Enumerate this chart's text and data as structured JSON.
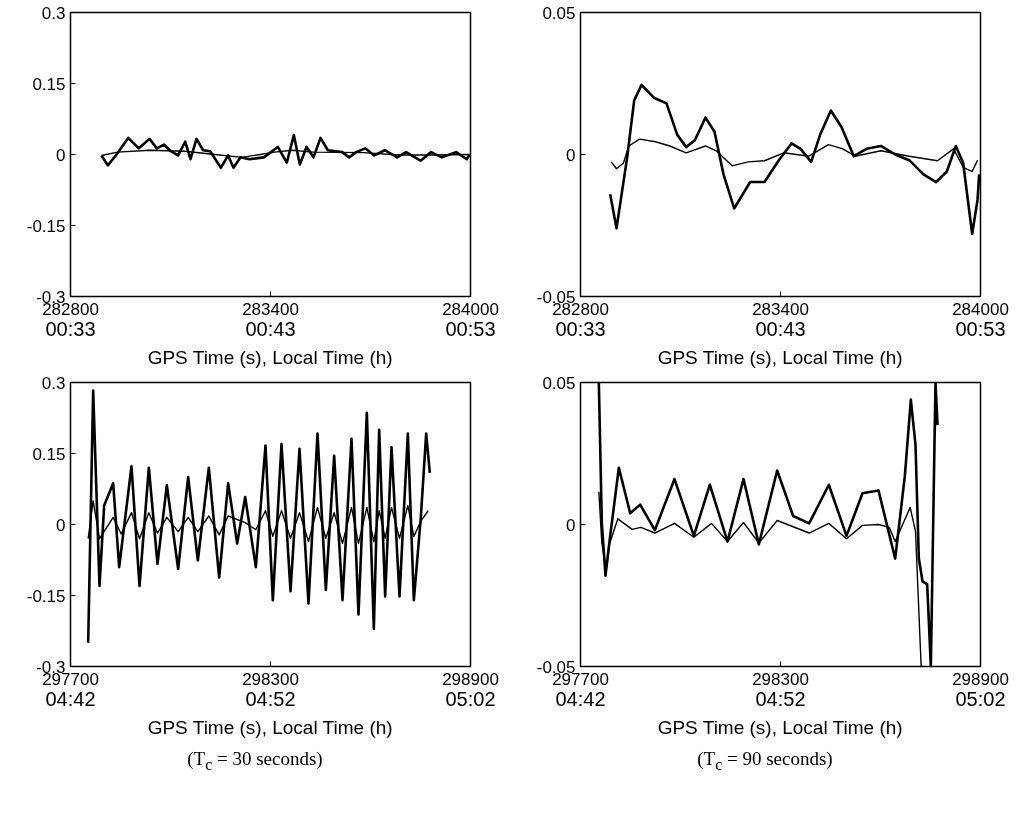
{
  "chart_data": [
    {
      "type": "line",
      "xlabel": "GPS Time (s), Local Time (h)",
      "xlim": [
        282800,
        284000
      ],
      "ylim": [
        -0.3,
        0.3
      ],
      "xticks": [
        282800,
        283400,
        284000
      ],
      "x2lim": [
        0.55,
        0.8833333
      ],
      "x2ticks": [
        {
          "value": 0.55,
          "label": "00:33"
        },
        {
          "value": 0.7166667,
          "label": "00:43"
        },
        {
          "value": 0.8833333,
          "label": "00:53"
        }
      ],
      "yticks": [
        -0.3,
        -0.15,
        0,
        0.15,
        0.3
      ],
      "grid": false,
      "series": [
        {
          "color": "#000000",
          "x": [
            282893,
            282912,
            282936,
            282973,
            283005,
            283037,
            283059,
            283080,
            283101,
            283123,
            283144,
            283160,
            283178,
            283198,
            283219,
            283251,
            283273,
            283289,
            283310,
            283337,
            283380,
            283422,
            283449,
            283470,
            283488,
            283508,
            283529,
            283550,
            283572,
            283615,
            283636,
            283657,
            283684,
            283711,
            283743,
            283780,
            283807,
            283850,
            283882,
            283914,
            283957,
            283989,
            283997
          ],
          "values": [
            -0.002,
            -0.023,
            -0.002,
            0.035,
            0.013,
            0.033,
            0.013,
            0.021,
            0.007,
            -0.002,
            0.027,
            -0.01,
            0.033,
            0.009,
            0.007,
            -0.028,
            -0.002,
            -0.028,
            -0.006,
            -0.01,
            -0.006,
            0.016,
            -0.017,
            0.041,
            -0.021,
            0.016,
            -0.006,
            0.035,
            0.009,
            0.005,
            -0.006,
            0.005,
            0.013,
            -0.002,
            0.009,
            -0.006,
            0.005,
            -0.013,
            0.005,
            -0.006,
            0.005,
            -0.01,
            0
          ]
        },
        {
          "color": "#000000",
          "x": [
            282893,
            282941,
            283037,
            283144,
            283219,
            283315,
            283412,
            283465,
            283529,
            283678,
            283786,
            283893,
            283997
          ],
          "values": [
            -0.002,
            0.005,
            0.009,
            0.007,
            0.001,
            -0.006,
            0.005,
            0.009,
            0.005,
            0.004,
            -0.001,
            -0.001,
            0
          ]
        }
      ]
    },
    {
      "type": "line",
      "xlabel": "GPS Time (s), Local Time (h)",
      "xlim": [
        282800,
        284000
      ],
      "ylim": [
        -0.05,
        0.05
      ],
      "xticks": [
        282800,
        283400,
        284000
      ],
      "x2lim": [
        0.55,
        0.8833333
      ],
      "x2ticks": [
        {
          "value": 0.55,
          "label": "00:33"
        },
        {
          "value": 0.7166667,
          "label": "00:43"
        },
        {
          "value": 0.8833333,
          "label": "00:53"
        }
      ],
      "yticks": [
        -0.05,
        0,
        0.05
      ],
      "grid": false,
      "series": [
        {
          "color": "#000000",
          "x": [
            282889,
            282908,
            282940,
            282961,
            282983,
            283020,
            283058,
            283090,
            283117,
            283143,
            283175,
            283202,
            283229,
            283261,
            283309,
            283352,
            283395,
            283433,
            283460,
            283492,
            283519,
            283551,
            283583,
            283620,
            283658,
            283701,
            283744,
            283786,
            283829,
            283867,
            283899,
            283926,
            283948,
            283975,
            283991,
            283996
          ],
          "values": [
            -0.014,
            -0.026,
            -0.001,
            0.019,
            0.0245,
            0.02,
            0.018,
            0.007,
            0.0026,
            0.005,
            0.013,
            0.008,
            -0.007,
            -0.019,
            -0.0097,
            -0.0097,
            -0.002,
            0.0039,
            0.002,
            -0.0026,
            0.007,
            0.0155,
            0.0097,
            -0.0006,
            0.002,
            0.003,
            0,
            -0.002,
            -0.007,
            -0.0097,
            -0.006,
            0.003,
            -0.003,
            -0.028,
            -0.016,
            -0.007
          ]
        },
        {
          "color": "#000000",
          "x": [
            282892,
            282908,
            282929,
            282945,
            282977,
            283025,
            283068,
            283117,
            283175,
            283207,
            283255,
            283303,
            283352,
            283410,
            283485,
            283544,
            283587,
            283624,
            283701,
            283786,
            283871,
            283919,
            283948,
            283975,
            283991
          ],
          "values": [
            -0.0026,
            -0.005,
            -0.003,
            0.003,
            0.0054,
            0.0045,
            0.003,
            0.0006,
            0.003,
            0.0013,
            -0.004,
            -0.0026,
            -0.0022,
            0.0006,
            -0.0006,
            0.0035,
            0.002,
            -0.0006,
            0.0013,
            -0.0006,
            -0.0022,
            0.002,
            -0.0045,
            -0.006,
            -0.002
          ]
        }
      ]
    },
    {
      "type": "line",
      "xlabel": "GPS Time (s), Local Time (h)",
      "xlim": [
        297700,
        298900
      ],
      "ylim": [
        -0.3,
        0.3
      ],
      "xticks": [
        297700,
        298300,
        298900
      ],
      "x2lim": [
        4.7,
        5.0333333
      ],
      "x2ticks": [
        {
          "value": 4.7,
          "label": "04:42"
        },
        {
          "value": 4.8666667,
          "label": "04:52"
        },
        {
          "value": 5.0333333,
          "label": "05:02"
        }
      ],
      "yticks": [
        -0.3,
        -0.15,
        0,
        0.15,
        0.3
      ],
      "grid": false,
      "annotations": [
        "(T$_{c}$ = 30 seconds)"
      ],
      "series": [
        {
          "color": "#000000",
          "x": [
            297753,
            297768,
            297787,
            297801,
            297828,
            297846,
            297883,
            297907,
            297935,
            297961,
            297989,
            298023,
            298053,
            298082,
            298115,
            298146,
            298173,
            298200,
            298224,
            298256,
            298285,
            298307,
            298333,
            298360,
            298387,
            298414,
            298441,
            298466,
            298491,
            298516,
            298543,
            298564,
            298589,
            298610,
            298626,
            298644,
            298663,
            298687,
            298712,
            298730,
            298751,
            298767,
            298778
          ],
          "values": [
            -0.25,
            0.283,
            -0.13,
            0.04,
            0.087,
            -0.09,
            0.123,
            -0.13,
            0.12,
            -0.083,
            0.083,
            -0.094,
            0.1,
            -0.076,
            0.12,
            -0.112,
            0.087,
            -0.04,
            0.058,
            -0.09,
            0.167,
            -0.16,
            0.17,
            -0.141,
            0.16,
            -0.167,
            0.192,
            -0.138,
            0.145,
            -0.16,
            0.181,
            -0.19,
            0.236,
            -0.22,
            0.2,
            -0.152,
            0.163,
            -0.152,
            0.192,
            -0.16,
            0.015,
            0.192,
            0.109
          ]
        },
        {
          "color": "#000000",
          "x": [
            297753,
            297768,
            297787,
            297828,
            297852,
            297883,
            297907,
            297935,
            297961,
            297989,
            298023,
            298053,
            298082,
            298115,
            298146,
            298173,
            298224,
            298256,
            298285,
            298307,
            298333,
            298360,
            298387,
            298414,
            298441,
            298466,
            298491,
            298516,
            298543,
            298564,
            298589,
            298610,
            298626,
            298644,
            298663,
            298687,
            298712,
            298730,
            298751,
            298773
          ],
          "values": [
            -0.03,
            0.05,
            -0.03,
            0.015,
            -0.02,
            0.025,
            -0.03,
            0.025,
            -0.018,
            0.015,
            -0.015,
            0.015,
            -0.015,
            0.018,
            -0.022,
            0.018,
            0.004,
            -0.011,
            0.029,
            -0.025,
            0.029,
            -0.029,
            0.025,
            -0.036,
            0.036,
            -0.029,
            0.025,
            -0.04,
            0.036,
            -0.04,
            0.036,
            -0.036,
            0.029,
            -0.029,
            0.036,
            -0.029,
            0.04,
            -0.025,
            0.007,
            0.029
          ]
        }
      ]
    },
    {
      "type": "line",
      "xlabel": "GPS Time (s), Local Time (h)",
      "xlim": [
        297700,
        298900
      ],
      "ylim": [
        -0.05,
        0.05
      ],
      "xticks": [
        297700,
        298300,
        298900
      ],
      "x2lim": [
        4.7,
        5.0333333
      ],
      "x2ticks": [
        {
          "value": 4.7,
          "label": "04:42"
        },
        {
          "value": 4.8666667,
          "label": "04:52"
        },
        {
          "value": 5.0333333,
          "label": "05:02"
        }
      ],
      "yticks": [
        -0.05,
        0,
        0.05
      ],
      "grid": false,
      "annotations": [
        "(T$_{c}$ = 90 seconds)"
      ],
      "series": [
        {
          "color": "#000000",
          "x": [
            297755,
            297764,
            297775,
            297788,
            297815,
            297849,
            297879,
            297923,
            297982,
            298040,
            298088,
            298141,
            298189,
            298235,
            298290,
            298338,
            298386,
            298445,
            298498,
            298546,
            298594,
            298644,
            298673,
            298691,
            298705,
            298715,
            298726,
            298740,
            298751,
            298765,
            298771
          ],
          "values": [
            0.05,
            0.0004,
            -0.018,
            -0.005,
            0.02,
            0.004,
            0.007,
            -0.002,
            0.016,
            -0.004,
            0.014,
            -0.006,
            0.016,
            -0.007,
            0.019,
            0.003,
            0.0004,
            0.014,
            -0.004,
            0.011,
            0.012,
            -0.012,
            0.017,
            0.044,
            0.028,
            -0.012,
            -0.02,
            -0.021,
            -0.05,
            0.05,
            0.035
          ]
        },
        {
          "color": "#000000",
          "x": [
            297755,
            297764,
            297777,
            297788,
            297812,
            297855,
            297881,
            297923,
            297982,
            298040,
            298093,
            298141,
            298189,
            298235,
            298290,
            298386,
            298445,
            298498,
            298546,
            298594,
            298626,
            298644,
            298689,
            298705,
            298722
          ],
          "values": [
            0.0115,
            -0.0065,
            -0.016,
            -0.0065,
            0.002,
            -0.0017,
            -0.001,
            -0.003,
            0.0004,
            -0.0045,
            0.0004,
            -0.006,
            0.0007,
            -0.0065,
            0.0014,
            -0.003,
            0.0004,
            -0.005,
            -0.0003,
            0,
            -0.001,
            -0.006,
            0.006,
            -0.0024,
            -0.05
          ]
        }
      ]
    }
  ]
}
